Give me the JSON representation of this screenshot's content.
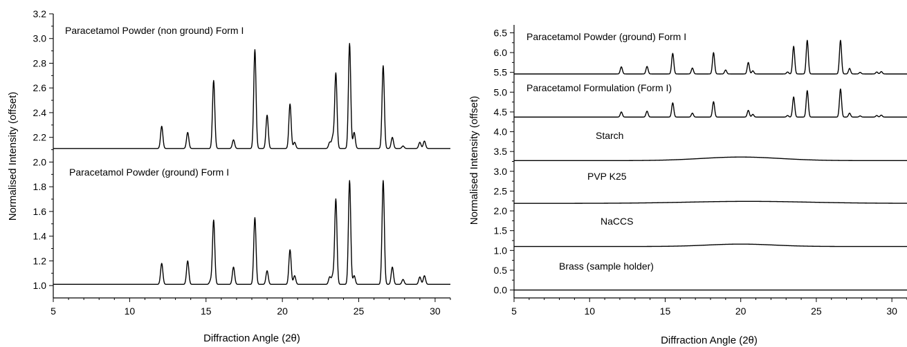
{
  "chart_data": [
    {
      "type": "line",
      "xlabel": "Diffraction Angle (2θ)",
      "ylabel": "Normalised Intensity (offset)",
      "xlim": [
        5,
        31
      ],
      "ylim": [
        0.9,
        3.2
      ],
      "x_ticks": [
        "5",
        "10",
        "15",
        "20",
        "25",
        "30"
      ],
      "y_ticks": [
        "1.0",
        "1.2",
        "1.4",
        "1.6",
        "1.8",
        "2.0",
        "2.2",
        "2.4",
        "2.6",
        "2.8",
        "3.0",
        "3.2"
      ],
      "grid": false,
      "series": [
        {
          "name": "Paracetamol Powder (non ground) Form I",
          "baseline": 2.11,
          "peaks": [
            [
              12.1,
              0.18
            ],
            [
              13.8,
              0.13
            ],
            [
              15.5,
              0.55
            ],
            [
              16.8,
              0.07
            ],
            [
              18.2,
              0.8
            ],
            [
              19.0,
              0.27
            ],
            [
              20.5,
              0.36
            ],
            [
              20.8,
              0.05
            ],
            [
              23.1,
              0.05
            ],
            [
              23.3,
              0.09
            ],
            [
              23.5,
              0.61
            ],
            [
              24.4,
              0.85
            ],
            [
              24.7,
              0.13
            ],
            [
              26.6,
              0.67
            ],
            [
              27.2,
              0.09
            ],
            [
              27.9,
              0.02
            ],
            [
              29.0,
              0.05
            ],
            [
              29.3,
              0.06
            ]
          ]
        },
        {
          "name": "Paracetamol Powder (ground) Form I",
          "baseline": 1.01,
          "peaks": [
            [
              12.1,
              0.17
            ],
            [
              13.8,
              0.19
            ],
            [
              15.3,
              0.03
            ],
            [
              15.5,
              0.52
            ],
            [
              16.8,
              0.14
            ],
            [
              18.2,
              0.54
            ],
            [
              19.0,
              0.11
            ],
            [
              20.5,
              0.28
            ],
            [
              20.8,
              0.07
            ],
            [
              23.1,
              0.06
            ],
            [
              23.3,
              0.07
            ],
            [
              23.5,
              0.69
            ],
            [
              24.4,
              0.84
            ],
            [
              24.7,
              0.07
            ],
            [
              26.6,
              0.84
            ],
            [
              27.2,
              0.14
            ],
            [
              27.9,
              0.04
            ],
            [
              29.0,
              0.06
            ],
            [
              29.3,
              0.07
            ]
          ]
        }
      ],
      "annotations": [
        "Paracetamol Powder (non ground) Form I",
        "Paracetamol Powder (ground) Form I"
      ]
    },
    {
      "type": "line",
      "xlabel": "Diffraction Angle (2θ)",
      "ylabel": "Normalised Intensity (offset)",
      "xlim": [
        5,
        31
      ],
      "ylim": [
        -0.2,
        6.7
      ],
      "x_ticks": [
        "5",
        "10",
        "15",
        "20",
        "25",
        "30"
      ],
      "y_ticks": [
        "0.0",
        "0.5",
        "1.0",
        "1.5",
        "2.0",
        "2.5",
        "3.0",
        "3.5",
        "4.0",
        "4.5",
        "5.0",
        "5.5",
        "6.0",
        "6.5"
      ],
      "grid": false,
      "series": [
        {
          "name": "Paracetamol Powder (ground) Form I",
          "baseline": 5.46,
          "peaks": [
            [
              12.1,
              0.18
            ],
            [
              13.8,
              0.19
            ],
            [
              15.5,
              0.52
            ],
            [
              16.8,
              0.15
            ],
            [
              18.2,
              0.54
            ],
            [
              19.0,
              0.1
            ],
            [
              20.5,
              0.29
            ],
            [
              20.8,
              0.08
            ],
            [
              23.1,
              0.05
            ],
            [
              23.5,
              0.7
            ],
            [
              24.4,
              0.85
            ],
            [
              26.6,
              0.85
            ],
            [
              27.2,
              0.14
            ],
            [
              27.9,
              0.04
            ],
            [
              29.0,
              0.05
            ],
            [
              29.3,
              0.06
            ]
          ]
        },
        {
          "name": "Paracetamol Formulation (Form I)",
          "baseline": 4.37,
          "peaks": [
            [
              12.1,
              0.13
            ],
            [
              13.8,
              0.15
            ],
            [
              15.5,
              0.36
            ],
            [
              16.8,
              0.1
            ],
            [
              18.2,
              0.39
            ],
            [
              20.5,
              0.17
            ],
            [
              20.8,
              0.07
            ],
            [
              23.1,
              0.04
            ],
            [
              23.5,
              0.51
            ],
            [
              24.4,
              0.67
            ],
            [
              26.6,
              0.71
            ],
            [
              27.2,
              0.1
            ],
            [
              27.9,
              0.03
            ],
            [
              29.0,
              0.04
            ],
            [
              29.3,
              0.05
            ]
          ]
        },
        {
          "name": "Starch",
          "baseline": 3.27,
          "hump": [
            20.0,
            0.09,
            2.6
          ]
        },
        {
          "name": "PVP K25",
          "baseline": 2.19,
          "hump": [
            20.5,
            0.05,
            4.0
          ]
        },
        {
          "name": "NaCCS",
          "baseline": 1.1,
          "hump": [
            20.0,
            0.06,
            2.2
          ]
        },
        {
          "name": "Brass (sample holder)",
          "baseline": 0.0,
          "hump": [
            20.0,
            0.0,
            1.0
          ]
        }
      ],
      "annotations": [
        "Paracetamol Powder (ground) Form I",
        "Paracetamol Formulation (Form I)",
        "Starch",
        "PVP K25",
        "NaCCS",
        "Brass (sample holder)"
      ]
    }
  ]
}
